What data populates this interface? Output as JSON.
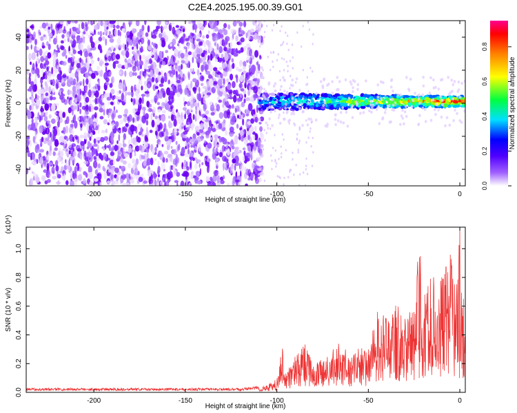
{
  "page_title": "C2E4.2025.195.00.39.G01",
  "chart_data": [
    {
      "type": "heatmap",
      "title": "C2E4.2025.195.00.39.G01",
      "xlabel": "Height of straight line (km)",
      "ylabel": "Frequency (Hz)",
      "xlim": [
        -237,
        3
      ],
      "ylim": [
        -50,
        50
      ],
      "xticks": [
        -200,
        -150,
        -100,
        -50,
        0
      ],
      "yticks": [
        -40,
        -20,
        0,
        20,
        40
      ],
      "noise_region_x": [
        -237,
        -110
      ],
      "signal_band": {
        "x_start": -110,
        "x_end": 3,
        "center_frequency": 1,
        "half_width": [
          5,
          3
        ]
      },
      "colorbar": {
        "label": "Normalized spectral amplitude",
        "range": [
          0,
          0.95
        ],
        "ticks": [
          0.0,
          0.2,
          0.4,
          0.6,
          0.8
        ],
        "tick_labels": [
          "0.0",
          "0.2",
          "0.4",
          "0.6",
          "0.8"
        ],
        "colormap": [
          "#ffffff",
          "#7a00ff",
          "#0000ff",
          "#00ffff",
          "#00ff00",
          "#ffff00",
          "#ff8000",
          "#ff0000",
          "#ff0080"
        ]
      },
      "grid": false
    },
    {
      "type": "line",
      "xlabel": "Height of straight line (km)",
      "ylabel": "SNR (10 * v/v)",
      "y_multiplier": "(x10⁴)",
      "xlim": [
        -237,
        3
      ],
      "ylim": [
        0,
        1.15
      ],
      "xticks": [
        -200,
        -150,
        -100,
        -50,
        0
      ],
      "yticks": [
        0.0,
        0.2,
        0.4,
        0.6,
        0.8,
        1.0
      ],
      "ytick_labels": [
        "0.0",
        "0.2",
        "0.4",
        "0.6",
        "0.8",
        "1.0"
      ],
      "line_color": "#ee3333",
      "series": [
        {
          "x": [
            -237,
            -220,
            -200,
            -180,
            -160,
            -140,
            -120,
            -110,
            -105,
            -100,
            -97,
            -95,
            -90,
            -85,
            -80,
            -75,
            -70,
            -65,
            -60,
            -55,
            -50,
            -45,
            -40,
            -35,
            -30,
            -25,
            -22,
            -20,
            -15,
            -10,
            -5,
            -2,
            0,
            0.5,
            1,
            2,
            3
          ],
          "y": [
            0.02,
            0.02,
            0.02,
            0.02,
            0.02,
            0.02,
            0.02,
            0.03,
            0.05,
            0.08,
            0.3,
            0.12,
            0.22,
            0.3,
            0.18,
            0.2,
            0.25,
            0.32,
            0.2,
            0.28,
            0.26,
            0.5,
            0.45,
            0.55,
            0.48,
            0.52,
            0.94,
            0.6,
            0.72,
            0.7,
            0.85,
            0.65,
            1.15,
            0.28,
            0.65,
            0.6,
            0.55
          ]
        }
      ],
      "grid": false
    }
  ]
}
